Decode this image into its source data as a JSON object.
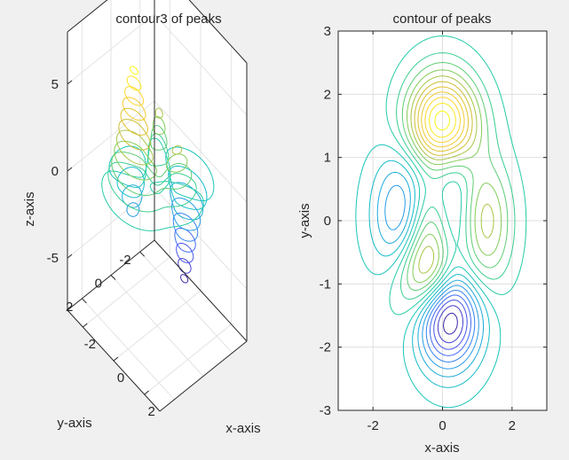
{
  "chart_data": [
    {
      "type": "contour3",
      "title": "contour3 of peaks",
      "xlabel": "x-axis",
      "ylabel": "y-axis",
      "zlabel": "z-axis",
      "xlim": [
        -3,
        3
      ],
      "ylim": [
        -3,
        3
      ],
      "zlim": [
        -8,
        8
      ],
      "xticks": [
        "-2",
        "0",
        "2"
      ],
      "yticks": [
        "-2",
        "0",
        "2"
      ],
      "zticks": [
        "-5",
        "0",
        "5"
      ],
      "grid": true,
      "colormap": "parula",
      "function": "peaks",
      "levels": 20
    },
    {
      "type": "contour",
      "title": "contour of peaks",
      "xlabel": "x-axis",
      "ylabel": "y-axis",
      "xlim": [
        -3,
        3
      ],
      "ylim": [
        -3,
        3
      ],
      "xticks": [
        "-2",
        "0",
        "2"
      ],
      "yticks": [
        "-3",
        "-2",
        "-1",
        "0",
        "1",
        "2",
        "3"
      ],
      "grid": true,
      "colormap": "parula",
      "function": "peaks",
      "levels": 20
    }
  ]
}
